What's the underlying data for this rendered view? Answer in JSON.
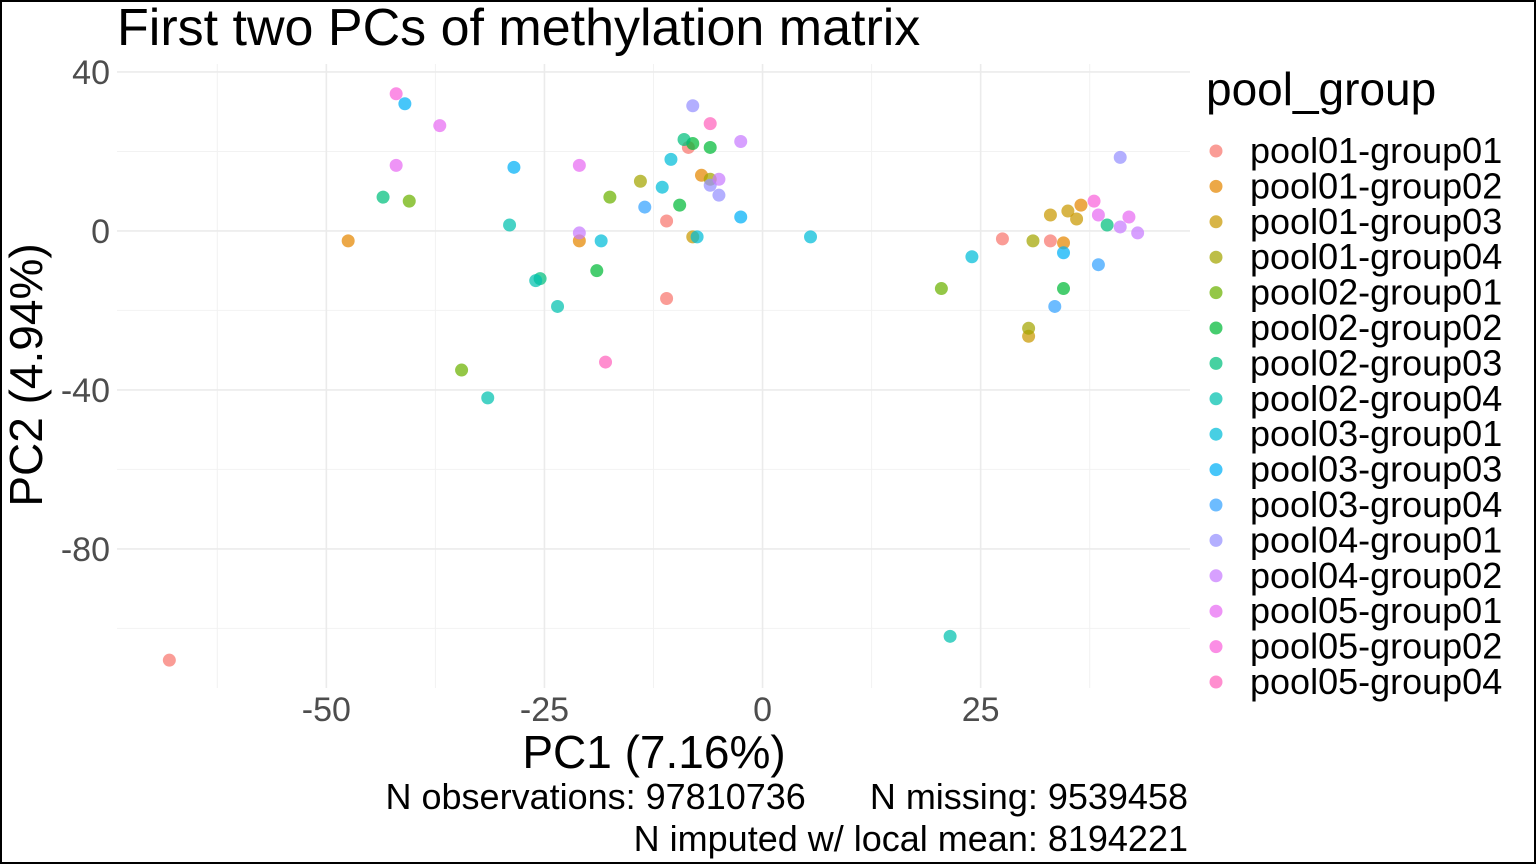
{
  "chart_data": {
    "type": "scatter",
    "title": "First two PCs of methylation matrix",
    "xlabel": "PC1 (7.16%)",
    "ylabel": "PC2 (4.94%)",
    "xlim": [
      -74,
      49
    ],
    "ylim": [
      -115,
      42
    ],
    "xticks": [
      -50,
      -25,
      0,
      25
    ],
    "xtick_labels": [
      "-50",
      "-25",
      "0",
      "25"
    ],
    "yticks": [
      40,
      0,
      -40,
      -80
    ],
    "ytick_labels": [
      "40",
      "0",
      "-40",
      "-80"
    ],
    "grid": true,
    "legend": {
      "title": "pool_group",
      "position": "right"
    },
    "series": [
      {
        "name": "pool01-group01",
        "color": "#F8766D",
        "points": [
          [
            -68,
            -108
          ],
          [
            -8.5,
            21
          ],
          [
            -11,
            2.5
          ],
          [
            -11,
            -17
          ],
          [
            27.5,
            -2
          ],
          [
            33,
            -2.5
          ]
        ]
      },
      {
        "name": "pool01-group02",
        "color": "#E58700",
        "points": [
          [
            -47.5,
            -2.5
          ],
          [
            -21,
            -2.5
          ],
          [
            -7,
            14
          ],
          [
            36.5,
            6.5
          ],
          [
            34.5,
            -3
          ]
        ]
      },
      {
        "name": "pool01-group03",
        "color": "#C99800",
        "points": [
          [
            -8,
            -1.5
          ],
          [
            33,
            4
          ],
          [
            35,
            5
          ],
          [
            36,
            3
          ],
          [
            30.5,
            -26.5
          ]
        ]
      },
      {
        "name": "pool01-group04",
        "color": "#A3A500",
        "points": [
          [
            -14,
            12.5
          ],
          [
            31,
            -2.5
          ],
          [
            30.5,
            -24.5
          ],
          [
            -6,
            13
          ]
        ]
      },
      {
        "name": "pool02-group01",
        "color": "#6BB100",
        "points": [
          [
            -40.5,
            7.5
          ],
          [
            -34.5,
            -35
          ],
          [
            -17.5,
            8.5
          ],
          [
            20.5,
            -14.5
          ]
        ]
      },
      {
        "name": "pool02-group02",
        "color": "#00BA38",
        "points": [
          [
            -9.5,
            6.5
          ],
          [
            -19,
            -10
          ],
          [
            -6,
            21
          ],
          [
            34.5,
            -14.5
          ],
          [
            -8,
            22
          ]
        ]
      },
      {
        "name": "pool02-group03",
        "color": "#00BF7D",
        "points": [
          [
            -43.5,
            8.5
          ],
          [
            -25.5,
            -12
          ],
          [
            -9,
            23
          ],
          [
            39.5,
            1.5
          ]
        ]
      },
      {
        "name": "pool02-group04",
        "color": "#00C0AF",
        "points": [
          [
            -31.5,
            -42
          ],
          [
            -29,
            1.5
          ],
          [
            -26,
            -12.5
          ],
          [
            -23.5,
            -19
          ],
          [
            21.5,
            -102
          ]
        ]
      },
      {
        "name": "pool03-group01",
        "color": "#00BCD8",
        "points": [
          [
            -18.5,
            -2.5
          ],
          [
            -11.5,
            11
          ],
          [
            -10.5,
            18
          ],
          [
            -7.5,
            -1.5
          ],
          [
            5.5,
            -1.5
          ],
          [
            24,
            -6.5
          ]
        ]
      },
      {
        "name": "pool03-group03",
        "color": "#00B0F6",
        "points": [
          [
            -41,
            32
          ],
          [
            -28.5,
            16
          ],
          [
            -2.5,
            3.5
          ],
          [
            34.5,
            -5.5
          ]
        ]
      },
      {
        "name": "pool03-group04",
        "color": "#35A2FF",
        "points": [
          [
            -13.5,
            6
          ],
          [
            33.5,
            -19
          ],
          [
            38.5,
            -8.5
          ]
        ]
      },
      {
        "name": "pool04-group01",
        "color": "#9590FF",
        "points": [
          [
            -8,
            31.5
          ],
          [
            -6,
            11.5
          ],
          [
            -5,
            9
          ],
          [
            41,
            18.5
          ]
        ]
      },
      {
        "name": "pool04-group02",
        "color": "#C77CFF",
        "points": [
          [
            -21,
            -0.5
          ],
          [
            -2.5,
            22.5
          ],
          [
            -5,
            13
          ],
          [
            41,
            1
          ],
          [
            43,
            -0.5
          ]
        ]
      },
      {
        "name": "pool05-group01",
        "color": "#E76BF3",
        "points": [
          [
            -42,
            16.5
          ],
          [
            -37,
            26.5
          ],
          [
            -21,
            16.5
          ],
          [
            38.5,
            4
          ],
          [
            42,
            3.5
          ]
        ]
      },
      {
        "name": "pool05-group02",
        "color": "#FA62DB",
        "points": [
          [
            -42,
            34.5
          ],
          [
            38,
            7.5
          ]
        ]
      },
      {
        "name": "pool05-group04",
        "color": "#FF62BC",
        "points": [
          [
            -18,
            -33
          ],
          [
            -6,
            27
          ]
        ]
      }
    ]
  },
  "caption": {
    "observations": "N observations: 97810736",
    "missing": "N missing: 9539458",
    "imputed": "N imputed w/ local mean: 8194221"
  }
}
